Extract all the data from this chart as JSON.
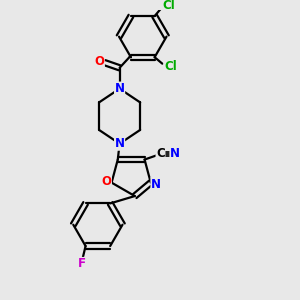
{
  "bg_color": "#e8e8e8",
  "bond_color": "#000000",
  "N_color": "#0000ff",
  "O_color": "#ff0000",
  "F_color": "#cc00cc",
  "Cl_color": "#00aa00",
  "lw": 1.6,
  "fs": 8.5,
  "xlim": [
    0,
    10
  ],
  "ylim": [
    0,
    10
  ]
}
